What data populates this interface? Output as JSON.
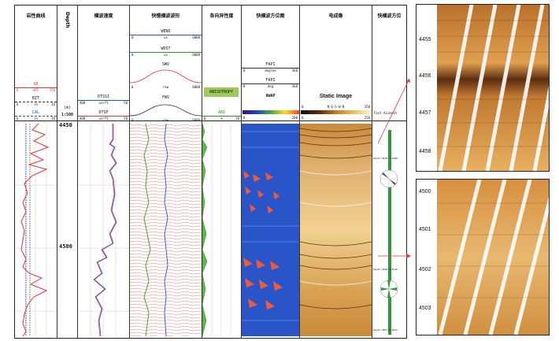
{
  "tracks": {
    "lithology": {
      "title": "岩性曲线",
      "curves": [
        {
          "name": "GR",
          "unit": "API",
          "min": "0",
          "max": "150",
          "color": "#e33"
        },
        {
          "name": "BIT",
          "unit": "in",
          "min": "6",
          "max": "16",
          "color": "#333"
        },
        {
          "name": "CAL",
          "unit": "in",
          "min": "6",
          "max": "16",
          "color": "#2255cc"
        }
      ]
    },
    "depth": {
      "title": "Depth",
      "unit": "(m)",
      "scale": "1:500",
      "marks": [
        "4450",
        "4500"
      ]
    },
    "velocity": {
      "title": "横波速度",
      "curves": [
        {
          "name": "DTSSI",
          "unit": "us/ft",
          "min": "400",
          "max": "50"
        },
        {
          "name": "DTSP",
          "unit": "us/ft",
          "min": "400",
          "max": "50"
        }
      ]
    },
    "waveform": {
      "title": "快慢横波波形",
      "items": [
        {
          "name": "WENO",
          "min": "0",
          "unit": "us",
          "max": "6000"
        },
        {
          "name": "WDST",
          "min": "0",
          "unit": "us",
          "max": "6000"
        },
        {
          "name": "SWV",
          "min": "0",
          "unit": "raw",
          "max": "6000"
        },
        {
          "name": "FWV",
          "min": "0",
          "unit": "raw",
          "max": "6000"
        }
      ]
    },
    "anisotropy": {
      "title": "各向异性度",
      "box_label": "ANISOTROPY",
      "curve": "ANI",
      "min": "0",
      "unit": "%",
      "max": "10"
    },
    "azimuth": {
      "title": "快横波方位图",
      "curves": [
        {
          "name": "FAPI",
          "min": "0",
          "unit": "degree",
          "max": "360"
        },
        {
          "name": "FAPI",
          "min": "0",
          "unit": "deg",
          "max": "360"
        }
      ],
      "image_label": "AWAP",
      "scale_min": "0",
      "scale_max": "200"
    },
    "image": {
      "title": "电成像",
      "label": "Static Image",
      "orient": "N-E-S-W-N",
      "min": "0",
      "max": "350",
      "scale_min": "0",
      "scale_max": "250"
    },
    "fast": {
      "title": "快横波方位",
      "label": "Fast Azimuth",
      "rose1": "Depth:4450.7-4480.",
      "rose2": "Depth:4500.0-4520.",
      "rose3": "Depth:4507.0-4547."
    }
  },
  "panels": {
    "top": {
      "depths": [
        "4455",
        "4456",
        "4457",
        "4458"
      ]
    },
    "bottom": {
      "depths": [
        "4500",
        "4501",
        "4502",
        "4503"
      ]
    }
  }
}
